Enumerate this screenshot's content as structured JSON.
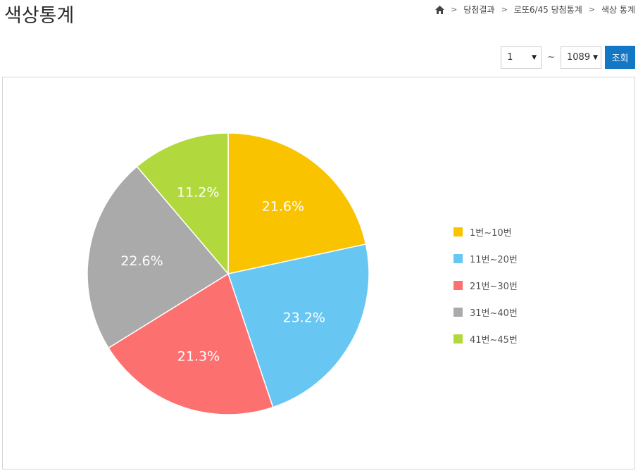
{
  "page": {
    "title": "색상통계",
    "breadcrumb": [
      "당첨결과",
      "로또6/45 당첨통계",
      "색상 통계"
    ]
  },
  "controls": {
    "from_value": "1",
    "tilde": "~",
    "to_value": "1089",
    "search_label": "조회",
    "search_color": "#1377c4"
  },
  "chart_data": {
    "type": "pie",
    "categories": [
      "1번~10번",
      "11번~20번",
      "21번~30번",
      "31번~40번",
      "41번~45번"
    ],
    "values": [
      21.6,
      23.2,
      21.3,
      22.6,
      11.2
    ],
    "labels": [
      "21.6%",
      "23.2%",
      "21.3%",
      "22.6%",
      "11.2%"
    ],
    "colors": [
      "#f9c300",
      "#68c7f2",
      "#fd7070",
      "#aaaaaa",
      "#b1d93e"
    ],
    "legend_position": "right",
    "title": ""
  }
}
